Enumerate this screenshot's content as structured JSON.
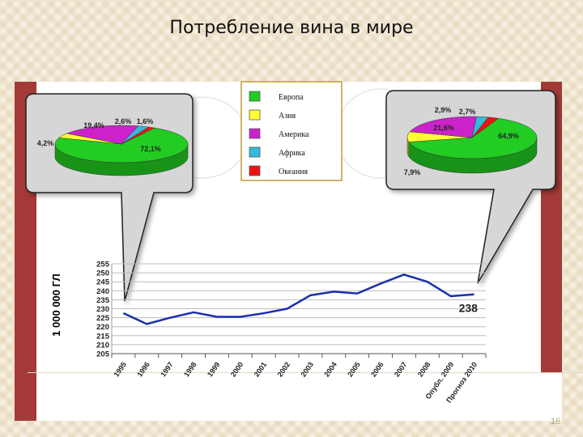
{
  "slide": {
    "title": "Потребление вина в мире",
    "page_number": "16"
  },
  "legend": {
    "items": [
      {
        "label": "Европа",
        "color": "#22cc22"
      },
      {
        "label": "Азия",
        "color": "#ffff33"
      },
      {
        "label": "Америка",
        "color": "#cc22cc"
      },
      {
        "label": "Африка",
        "color": "#33bbdd"
      },
      {
        "label": "Океания",
        "color": "#ee1111"
      }
    ]
  },
  "chart_data": [
    {
      "type": "line",
      "ylabel": "1 000 000 ГЛ",
      "ylim": [
        205,
        255
      ],
      "yticks": [
        205,
        210,
        215,
        220,
        225,
        230,
        235,
        240,
        245,
        250,
        255
      ],
      "x": [
        "1995",
        "1996",
        "1997",
        "1998",
        "1999",
        "2000",
        "2001",
        "2002",
        "2003",
        "2004",
        "2005",
        "2006",
        "2007",
        "2008",
        "Опубл. 2009",
        "Прогноз 2010"
      ],
      "series": [
        {
          "values": [
            227.5,
            221.5,
            225,
            228,
            225.5,
            225.5,
            227.5,
            230,
            237.5,
            239.5,
            238.5,
            244,
            249,
            245,
            237,
            238
          ],
          "color": "#1a2fb0"
        }
      ],
      "annotations": [
        {
          "text": "238",
          "x": "Прогноз 2010"
        }
      ],
      "grid": true
    },
    {
      "type": "pie",
      "labels": [
        "Европа",
        "Азия",
        "Америка",
        "Африка",
        "Океания"
      ],
      "values": [
        72.1,
        4.2,
        19.4,
        2.6,
        1.6
      ],
      "value_labels": [
        "72,1%",
        "4,2%",
        "19,4%",
        "2,6%",
        "1,6%"
      ]
    },
    {
      "type": "pie",
      "labels": [
        "Европа",
        "Азия",
        "Америка",
        "Африка",
        "Океания"
      ],
      "values": [
        64.9,
        7.9,
        21.6,
        2.9,
        2.7
      ],
      "value_labels": [
        "64,9%",
        "7,9%",
        "21,6%",
        "2,9%",
        "2,7%"
      ]
    }
  ]
}
